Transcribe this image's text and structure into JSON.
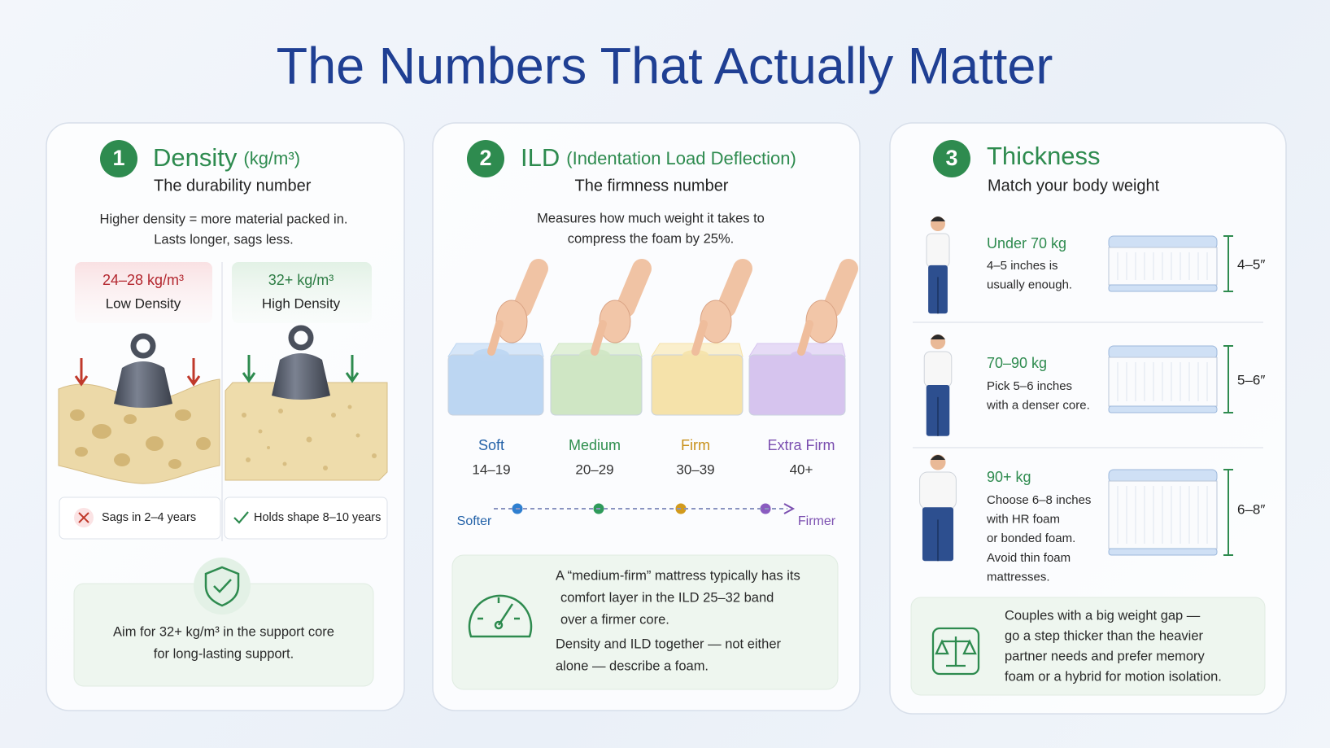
{
  "title": "The Numbers That Actually Matter",
  "density": {
    "number": "1",
    "heading": "Density",
    "unit": "(kg/m³)",
    "subtitle": "The durability number",
    "description": [
      "Higher density = more material packed in.",
      "Lasts longer, sags less."
    ],
    "options": [
      {
        "range": "24–28 kg/m³",
        "label": "Low Density",
        "verdict": "Sags in 2–4 years"
      },
      {
        "range": "32+ kg/m³",
        "label": "High Density",
        "verdict": "Holds shape 8–10 years"
      }
    ],
    "tip": [
      "Aim for 32+ kg/m³ in the support core",
      "for long-lasting support."
    ]
  },
  "ild": {
    "number": "2",
    "heading": "ILD",
    "unit": "(Indentation Load Deflection)",
    "subtitle": "The firmness number",
    "description": [
      "Measures how much weight it takes to",
      "compress the foam by 25%."
    ],
    "levels": [
      {
        "name": "Soft",
        "range": "14–19"
      },
      {
        "name": "Medium",
        "range": "20–29"
      },
      {
        "name": "Firm",
        "range": "30–39"
      },
      {
        "name": "Extra Firm",
        "range": "40+"
      }
    ],
    "scale": {
      "start": "Softer",
      "end": "Firmer"
    },
    "note": [
      [
        "A “medium-firm” mattress typically has its",
        "comfort layer in the ILD 25–32 band",
        "over a firmer core."
      ],
      [
        "Density and ILD together — not either",
        "alone — describe a foam."
      ]
    ]
  },
  "thickness": {
    "number": "3",
    "heading": "Thickness",
    "subtitle": "Match your body weight",
    "rows": [
      {
        "weight": "Under 70 kg",
        "advice": [
          "4–5 inches is",
          "usually enough."
        ],
        "size": "4–5″"
      },
      {
        "weight": "70–90 kg",
        "advice": [
          "Pick 5–6 inches",
          "with a denser core."
        ],
        "size": "5–6″"
      },
      {
        "weight": "90+ kg",
        "advice": [
          "Choose 6–8 inches",
          "with HR foam",
          "or bonded foam.",
          "Avoid thin foam",
          "mattresses."
        ],
        "size": "6–8″"
      }
    ],
    "note": [
      "Couples with a big weight gap —",
      "go a step thicker than the heavier",
      "partner needs and prefer memory",
      "foam or a hybrid for motion isolation."
    ]
  }
}
